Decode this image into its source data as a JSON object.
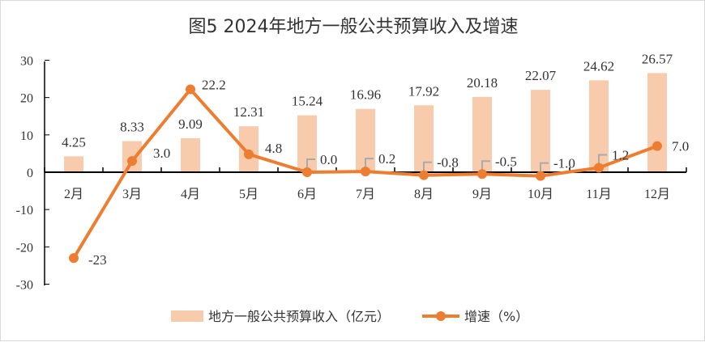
{
  "chart_data": {
    "type": "bar+line",
    "title": "图5  2024年地方一般公共预算收入及增速",
    "categories": [
      "2月",
      "3月",
      "4月",
      "5月",
      "6月",
      "7月",
      "8月",
      "9月",
      "10月",
      "11月",
      "12月"
    ],
    "series": [
      {
        "name": "地方一般公共预算收入（亿元）",
        "type": "bar",
        "color": "#f8cbad",
        "values": [
          4.25,
          8.33,
          9.09,
          12.31,
          15.24,
          16.96,
          17.92,
          20.18,
          22.07,
          24.62,
          26.57
        ],
        "labels": [
          "4.25",
          "8.33",
          "9.09",
          "12.31",
          "15.24",
          "16.96",
          "17.92",
          "20.18",
          "22.07",
          "24.62",
          "26.57"
        ]
      },
      {
        "name": "增速（%）",
        "type": "line",
        "color": "#ed7d31",
        "values": [
          -23,
          3.0,
          22.2,
          4.8,
          0.0,
          0.2,
          -0.8,
          -0.5,
          -1.0,
          1.2,
          7.0
        ],
        "labels": [
          "-23",
          "3.0",
          "22.2",
          "4.8",
          "0.0",
          "0.2",
          "-0.8",
          "-0.5",
          "-1.0",
          "1.2",
          "7.0"
        ]
      }
    ],
    "ylim": [
      -30,
      30
    ],
    "yticks": [
      "30",
      "20",
      "10",
      "0",
      "-10",
      "-20",
      "-30"
    ],
    "grid": false,
    "legend": "bottom"
  }
}
